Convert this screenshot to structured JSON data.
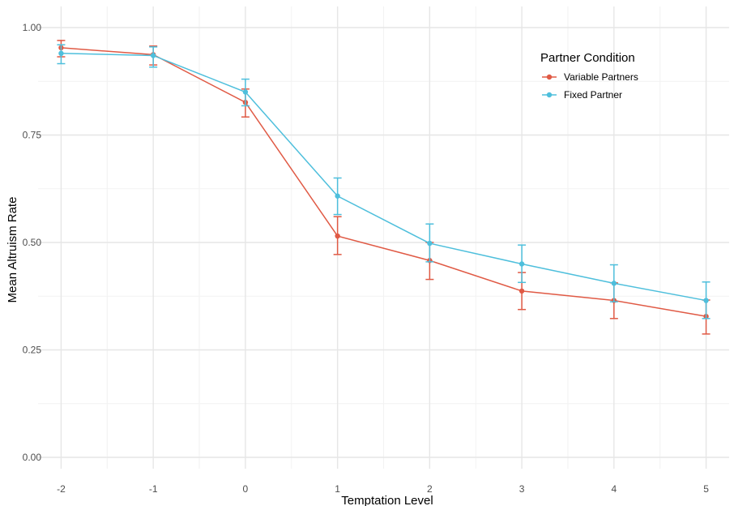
{
  "chart_data": {
    "type": "line",
    "xlabel": "Temptation Level",
    "ylabel": "Mean Altruism Rate",
    "x": [
      -2,
      -1,
      0,
      1,
      2,
      3,
      4,
      5
    ],
    "x_tick_labels": [
      "-2",
      "-1",
      "0",
      "1",
      "2",
      "3",
      "4",
      "5"
    ],
    "y_tick_labels": [
      "0.00",
      "0.25",
      "0.50",
      "0.75",
      "1.00"
    ],
    "y_ticks": [
      0,
      0.25,
      0.5,
      0.75,
      1.0
    ],
    "xlim": [
      -2.25,
      5.25
    ],
    "ylim": [
      0,
      1.0
    ],
    "grid": true,
    "legend": {
      "title": "Partner Condition",
      "placement": "top-right"
    },
    "series": [
      {
        "name": "Variable Partners",
        "color": "#e05a45",
        "values": [
          0.953,
          0.937,
          0.826,
          0.515,
          0.458,
          0.387,
          0.365,
          0.328
        ],
        "error_low": [
          0.932,
          0.913,
          0.792,
          0.472,
          0.414,
          0.344,
          0.323,
          0.287
        ],
        "error_high": [
          0.97,
          0.957,
          0.857,
          0.56,
          0.5,
          0.43,
          0.406,
          0.366
        ]
      },
      {
        "name": "Fixed Partner",
        "color": "#4ebfdc",
        "values": [
          0.94,
          0.935,
          0.85,
          0.608,
          0.498,
          0.45,
          0.405,
          0.365
        ],
        "error_low": [
          0.916,
          0.908,
          0.818,
          0.565,
          0.455,
          0.407,
          0.362,
          0.323
        ],
        "error_high": [
          0.96,
          0.955,
          0.88,
          0.65,
          0.543,
          0.494,
          0.448,
          0.408
        ]
      }
    ]
  }
}
